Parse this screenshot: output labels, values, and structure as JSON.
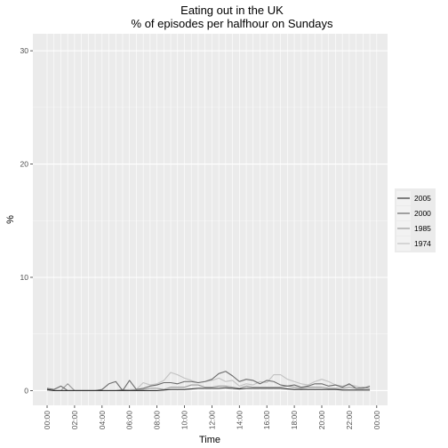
{
  "chart_data": {
    "type": "line",
    "title": "Eating out in the UK",
    "subtitle": "% of episodes per halfhour on Sundays",
    "xlabel": "Time",
    "ylabel": "%",
    "ylim": [
      -1.3,
      31.5
    ],
    "y_ticks": [
      0,
      10,
      20,
      30
    ],
    "x_tick_labels": [
      "00:00",
      "02:00",
      "04:00",
      "06:00",
      "08:00",
      "10:00",
      "12:00",
      "14:00",
      "16:00",
      "18:00",
      "20:00",
      "22:00",
      "00:00"
    ],
    "grid": true,
    "legend_position": "right",
    "x": [
      "00:00",
      "00:30",
      "01:00",
      "01:30",
      "02:00",
      "02:30",
      "03:00",
      "03:30",
      "04:00",
      "04:30",
      "05:00",
      "05:30",
      "06:00",
      "06:30",
      "07:00",
      "07:30",
      "08:00",
      "08:30",
      "09:00",
      "09:30",
      "10:00",
      "10:30",
      "11:00",
      "11:30",
      "12:00",
      "12:30",
      "13:00",
      "13:30",
      "14:00",
      "14:30",
      "15:00",
      "15:30",
      "16:00",
      "16:30",
      "17:00",
      "17:30",
      "18:00",
      "18:30",
      "19:00",
      "19:30",
      "20:00",
      "20:30",
      "21:00",
      "21:30",
      "22:00",
      "22:30",
      "23:00",
      "23:30"
    ],
    "series": [
      {
        "name": "2005",
        "color": "#333333",
        "values": [
          0.1,
          0,
          0,
          0,
          0,
          0,
          0,
          0,
          0,
          0,
          0,
          0,
          0,
          0,
          0,
          0,
          0,
          0.05,
          0.1,
          0.1,
          0.1,
          0.15,
          0.2,
          0.2,
          0.2,
          0.2,
          0.25,
          0.2,
          0.15,
          0.2,
          0.2,
          0.2,
          0.2,
          0.2,
          0.2,
          0.15,
          0.1,
          0.1,
          0.1,
          0.1,
          0.1,
          0.1,
          0.1,
          0.05,
          0.05,
          0.05,
          0.05,
          0.05
        ]
      },
      {
        "name": "2000",
        "color": "#6b6b6b",
        "values": [
          0.2,
          0.1,
          0.4,
          0,
          0,
          0,
          0,
          0,
          0.1,
          0.6,
          0.8,
          0,
          0.9,
          0.1,
          0.2,
          0.4,
          0.5,
          0.7,
          0.7,
          0.6,
          0.8,
          0.8,
          0.7,
          0.8,
          1.0,
          1.5,
          1.7,
          1.3,
          0.8,
          1.0,
          0.9,
          0.6,
          0.9,
          0.8,
          0.5,
          0.4,
          0.5,
          0.3,
          0.4,
          0.6,
          0.6,
          0.4,
          0.5,
          0.3,
          0.6,
          0.2,
          0.2,
          0.4
        ]
      },
      {
        "name": "1985",
        "color": "#9a9a9a",
        "values": [
          0.1,
          0,
          0,
          0.6,
          0,
          0,
          0,
          0,
          0,
          0,
          0,
          0.1,
          0,
          0.1,
          0.1,
          0.2,
          0.2,
          0.1,
          0.3,
          0.3,
          0.3,
          0.5,
          0.5,
          0.3,
          0.3,
          0.4,
          0.4,
          0.3,
          0.2,
          0.4,
          0.3,
          0.3,
          0.3,
          0.3,
          0.3,
          0.4,
          0.3,
          0.2,
          0.3,
          0.3,
          0.3,
          0.2,
          0.2,
          0.2,
          0.3,
          0.2,
          0.3,
          0.2
        ]
      },
      {
        "name": "1974",
        "color": "#c2c2c2",
        "values": [
          0,
          0,
          0,
          0,
          0,
          0,
          0,
          0,
          0,
          0,
          0,
          0,
          0.1,
          0.1,
          0.7,
          0.5,
          0.6,
          0.9,
          1.6,
          1.4,
          1.1,
          0.9,
          0.7,
          0.8,
          0.9,
          1.1,
          0.8,
          0.9,
          0.4,
          0.6,
          0.5,
          0.8,
          0.7,
          1.4,
          1.4,
          1.0,
          0.8,
          0.6,
          0.5,
          0.8,
          1.0,
          0.8,
          0.5,
          0.4,
          0.5,
          0.4,
          0.2,
          0.2
        ]
      }
    ]
  }
}
